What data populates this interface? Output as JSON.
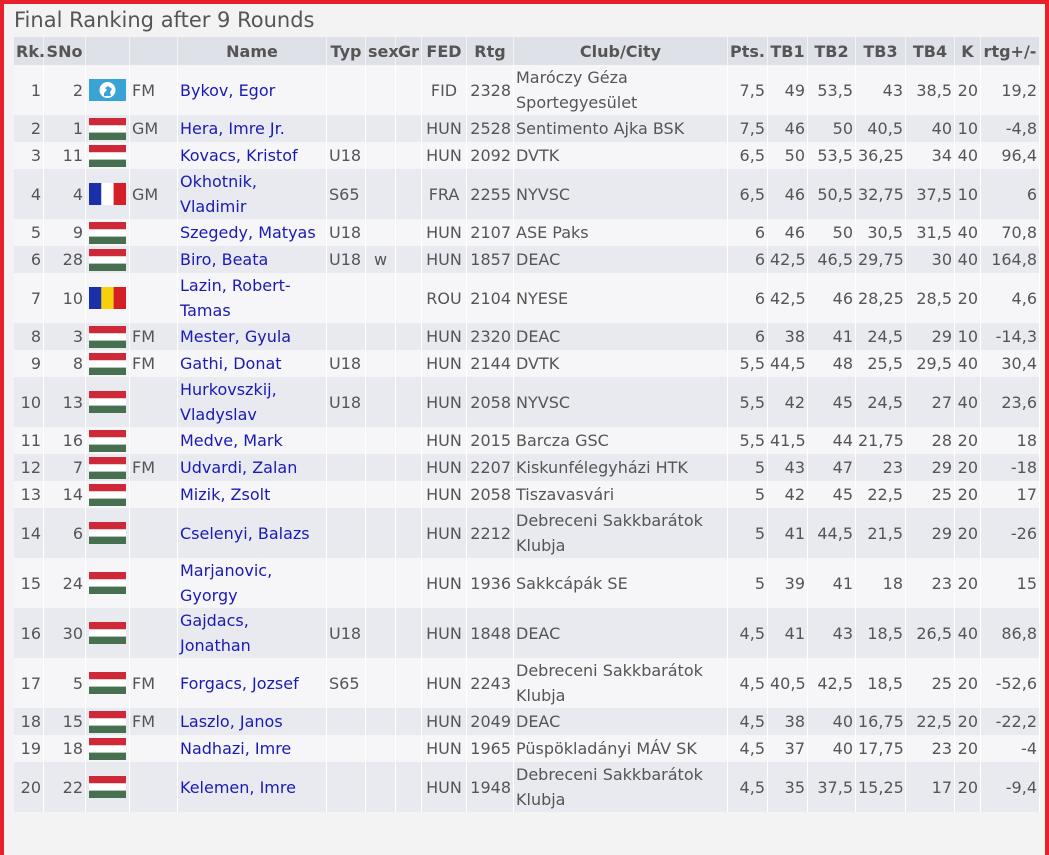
{
  "title": "Final Ranking after 9 Rounds",
  "headers": [
    "Rk.",
    "SNo",
    "",
    "",
    "Name",
    "Typ",
    "sex",
    "Gr",
    "FED",
    "Rtg",
    "Club/City",
    "Pts.",
    "TB1",
    "TB2",
    "TB3",
    "TB4",
    "K",
    "rtg+/-"
  ],
  "colors": {
    "border": "#e8202a",
    "link": "#1a1ab4",
    "header_bg": "#dfe1e8"
  },
  "rows": [
    {
      "rk": "1",
      "sno": "2",
      "flag": "fide",
      "title": "FM",
      "name": "Bykov, Egor",
      "typ": "",
      "sex": "",
      "gr": "",
      "fed": "FID",
      "rtg": "2328",
      "club": "Maróczy Géza Sportegyesület",
      "pts": "7,5",
      "tb1": "49",
      "tb2": "53,5",
      "tb3": "43",
      "tb4": "38,5",
      "k": "20",
      "rtgd": "19,2"
    },
    {
      "rk": "2",
      "sno": "1",
      "flag": "hun",
      "title": "GM",
      "name": "Hera, Imre Jr.",
      "typ": "",
      "sex": "",
      "gr": "",
      "fed": "HUN",
      "rtg": "2528",
      "club": "Sentimento Ajka BSK",
      "pts": "7,5",
      "tb1": "46",
      "tb2": "50",
      "tb3": "40,5",
      "tb4": "40",
      "k": "10",
      "rtgd": "-4,8"
    },
    {
      "rk": "3",
      "sno": "11",
      "flag": "hun",
      "title": "",
      "name": "Kovacs, Kristof",
      "typ": "U18",
      "sex": "",
      "gr": "",
      "fed": "HUN",
      "rtg": "2092",
      "club": "DVTK",
      "pts": "6,5",
      "tb1": "50",
      "tb2": "53,5",
      "tb3": "36,25",
      "tb4": "34",
      "k": "40",
      "rtgd": "96,4"
    },
    {
      "rk": "4",
      "sno": "4",
      "flag": "fra",
      "title": "GM",
      "name": "Okhotnik, Vladimir",
      "typ": "S65",
      "sex": "",
      "gr": "",
      "fed": "FRA",
      "rtg": "2255",
      "club": "NYVSC",
      "pts": "6,5",
      "tb1": "46",
      "tb2": "50,5",
      "tb3": "32,75",
      "tb4": "37,5",
      "k": "10",
      "rtgd": "6"
    },
    {
      "rk": "5",
      "sno": "9",
      "flag": "hun",
      "title": "",
      "name": "Szegedy, Matyas",
      "typ": "U18",
      "sex": "",
      "gr": "",
      "fed": "HUN",
      "rtg": "2107",
      "club": "ASE Paks",
      "pts": "6",
      "tb1": "46",
      "tb2": "50",
      "tb3": "30,5",
      "tb4": "31,5",
      "k": "40",
      "rtgd": "70,8"
    },
    {
      "rk": "6",
      "sno": "28",
      "flag": "hun",
      "title": "",
      "name": "Biro, Beata",
      "typ": "U18",
      "sex": "w",
      "gr": "",
      "fed": "HUN",
      "rtg": "1857",
      "club": "DEAC",
      "pts": "6",
      "tb1": "42,5",
      "tb2": "46,5",
      "tb3": "29,75",
      "tb4": "30",
      "k": "40",
      "rtgd": "164,8"
    },
    {
      "rk": "7",
      "sno": "10",
      "flag": "rou",
      "title": "",
      "name": "Lazin, Robert-Tamas",
      "typ": "",
      "sex": "",
      "gr": "",
      "fed": "ROU",
      "rtg": "2104",
      "club": "NYESE",
      "pts": "6",
      "tb1": "42,5",
      "tb2": "46",
      "tb3": "28,25",
      "tb4": "28,5",
      "k": "20",
      "rtgd": "4,6"
    },
    {
      "rk": "8",
      "sno": "3",
      "flag": "hun",
      "title": "FM",
      "name": "Mester, Gyula",
      "typ": "",
      "sex": "",
      "gr": "",
      "fed": "HUN",
      "rtg": "2320",
      "club": "DEAC",
      "pts": "6",
      "tb1": "38",
      "tb2": "41",
      "tb3": "24,5",
      "tb4": "29",
      "k": "10",
      "rtgd": "-14,3"
    },
    {
      "rk": "9",
      "sno": "8",
      "flag": "hun",
      "title": "FM",
      "name": "Gathi, Donat",
      "typ": "U18",
      "sex": "",
      "gr": "",
      "fed": "HUN",
      "rtg": "2144",
      "club": "DVTK",
      "pts": "5,5",
      "tb1": "44,5",
      "tb2": "48",
      "tb3": "25,5",
      "tb4": "29,5",
      "k": "40",
      "rtgd": "30,4"
    },
    {
      "rk": "10",
      "sno": "13",
      "flag": "hun",
      "title": "",
      "name": "Hurkovszkij, Vladyslav",
      "typ": "U18",
      "sex": "",
      "gr": "",
      "fed": "HUN",
      "rtg": "2058",
      "club": "NYVSC",
      "pts": "5,5",
      "tb1": "42",
      "tb2": "45",
      "tb3": "24,5",
      "tb4": "27",
      "k": "40",
      "rtgd": "23,6"
    },
    {
      "rk": "11",
      "sno": "16",
      "flag": "hun",
      "title": "",
      "name": "Medve, Mark",
      "typ": "",
      "sex": "",
      "gr": "",
      "fed": "HUN",
      "rtg": "2015",
      "club": "Barcza GSC",
      "pts": "5,5",
      "tb1": "41,5",
      "tb2": "44",
      "tb3": "21,75",
      "tb4": "28",
      "k": "20",
      "rtgd": "18"
    },
    {
      "rk": "12",
      "sno": "7",
      "flag": "hun",
      "title": "FM",
      "name": "Udvardi, Zalan",
      "typ": "",
      "sex": "",
      "gr": "",
      "fed": "HUN",
      "rtg": "2207",
      "club": "Kiskunfélegyházi HTK",
      "pts": "5",
      "tb1": "43",
      "tb2": "47",
      "tb3": "23",
      "tb4": "29",
      "k": "20",
      "rtgd": "-18"
    },
    {
      "rk": "13",
      "sno": "14",
      "flag": "hun",
      "title": "",
      "name": "Mizik, Zsolt",
      "typ": "",
      "sex": "",
      "gr": "",
      "fed": "HUN",
      "rtg": "2058",
      "club": "Tiszavasvári",
      "pts": "5",
      "tb1": "42",
      "tb2": "45",
      "tb3": "22,5",
      "tb4": "25",
      "k": "20",
      "rtgd": "17"
    },
    {
      "rk": "14",
      "sno": "6",
      "flag": "hun",
      "title": "",
      "name": "Cselenyi, Balazs",
      "typ": "",
      "sex": "",
      "gr": "",
      "fed": "HUN",
      "rtg": "2212",
      "club": "Debreceni Sakkbarátok Klubja",
      "pts": "5",
      "tb1": "41",
      "tb2": "44,5",
      "tb3": "21,5",
      "tb4": "29",
      "k": "20",
      "rtgd": "-26"
    },
    {
      "rk": "15",
      "sno": "24",
      "flag": "hun",
      "title": "",
      "name": "Marjanovic, Gyorgy",
      "typ": "",
      "sex": "",
      "gr": "",
      "fed": "HUN",
      "rtg": "1936",
      "club": "Sakkcápák SE",
      "pts": "5",
      "tb1": "39",
      "tb2": "41",
      "tb3": "18",
      "tb4": "23",
      "k": "20",
      "rtgd": "15"
    },
    {
      "rk": "16",
      "sno": "30",
      "flag": "hun",
      "title": "",
      "name": "Gajdacs, Jonathan",
      "typ": "U18",
      "sex": "",
      "gr": "",
      "fed": "HUN",
      "rtg": "1848",
      "club": "DEAC",
      "pts": "4,5",
      "tb1": "41",
      "tb2": "43",
      "tb3": "18,5",
      "tb4": "26,5",
      "k": "40",
      "rtgd": "86,8"
    },
    {
      "rk": "17",
      "sno": "5",
      "flag": "hun",
      "title": "FM",
      "name": "Forgacs, Jozsef",
      "typ": "S65",
      "sex": "",
      "gr": "",
      "fed": "HUN",
      "rtg": "2243",
      "club": "Debreceni Sakkbarátok Klubja",
      "pts": "4,5",
      "tb1": "40,5",
      "tb2": "42,5",
      "tb3": "18,5",
      "tb4": "25",
      "k": "20",
      "rtgd": "-52,6"
    },
    {
      "rk": "18",
      "sno": "15",
      "flag": "hun",
      "title": "FM",
      "name": "Laszlo, Janos",
      "typ": "",
      "sex": "",
      "gr": "",
      "fed": "HUN",
      "rtg": "2049",
      "club": "DEAC",
      "pts": "4,5",
      "tb1": "38",
      "tb2": "40",
      "tb3": "16,75",
      "tb4": "22,5",
      "k": "20",
      "rtgd": "-22,2"
    },
    {
      "rk": "19",
      "sno": "18",
      "flag": "hun",
      "title": "",
      "name": "Nadhazi, Imre",
      "typ": "",
      "sex": "",
      "gr": "",
      "fed": "HUN",
      "rtg": "1965",
      "club": "Püspökladányi MÁV SK",
      "pts": "4,5",
      "tb1": "37",
      "tb2": "40",
      "tb3": "17,75",
      "tb4": "23",
      "k": "20",
      "rtgd": "-4"
    },
    {
      "rk": "20",
      "sno": "22",
      "flag": "hun",
      "title": "",
      "name": "Kelemen, Imre",
      "typ": "",
      "sex": "",
      "gr": "",
      "fed": "HUN",
      "rtg": "1948",
      "club": "Debreceni Sakkbarátok Klubja",
      "pts": "4,5",
      "tb1": "35",
      "tb2": "37,5",
      "tb3": "15,25",
      "tb4": "17",
      "k": "20",
      "rtgd": "-9,4"
    }
  ]
}
